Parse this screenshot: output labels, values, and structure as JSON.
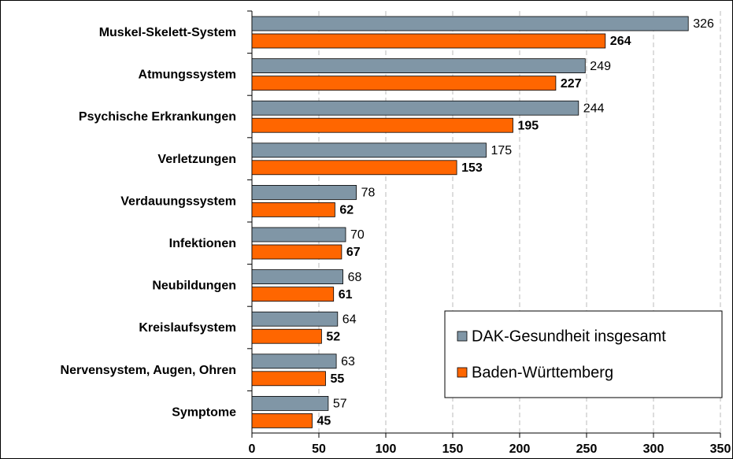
{
  "chart_data": {
    "type": "bar",
    "orientation": "horizontal",
    "categories": [
      "Muskel-Skelett-System",
      "Atmungssystem",
      "Psychische Erkrankungen",
      "Verletzungen",
      "Verdauungssystem",
      "Infektionen",
      "Neubildungen",
      "Kreislaufsystem",
      "Nervensystem, Augen, Ohren",
      "Symptome"
    ],
    "series": [
      {
        "name": "DAK-Gesundheit insgesamt",
        "color": "#8096a6",
        "values": [
          326,
          249,
          244,
          175,
          78,
          70,
          68,
          64,
          63,
          57
        ]
      },
      {
        "name": "Baden-Württemberg",
        "color": "#ff6600",
        "values": [
          264,
          227,
          195,
          153,
          62,
          67,
          61,
          52,
          55,
          45
        ]
      }
    ],
    "xlim": [
      0,
      350
    ],
    "xticks": [
      0,
      50,
      100,
      150,
      200,
      250,
      300,
      350
    ],
    "grid": true,
    "legend": "lower right"
  }
}
